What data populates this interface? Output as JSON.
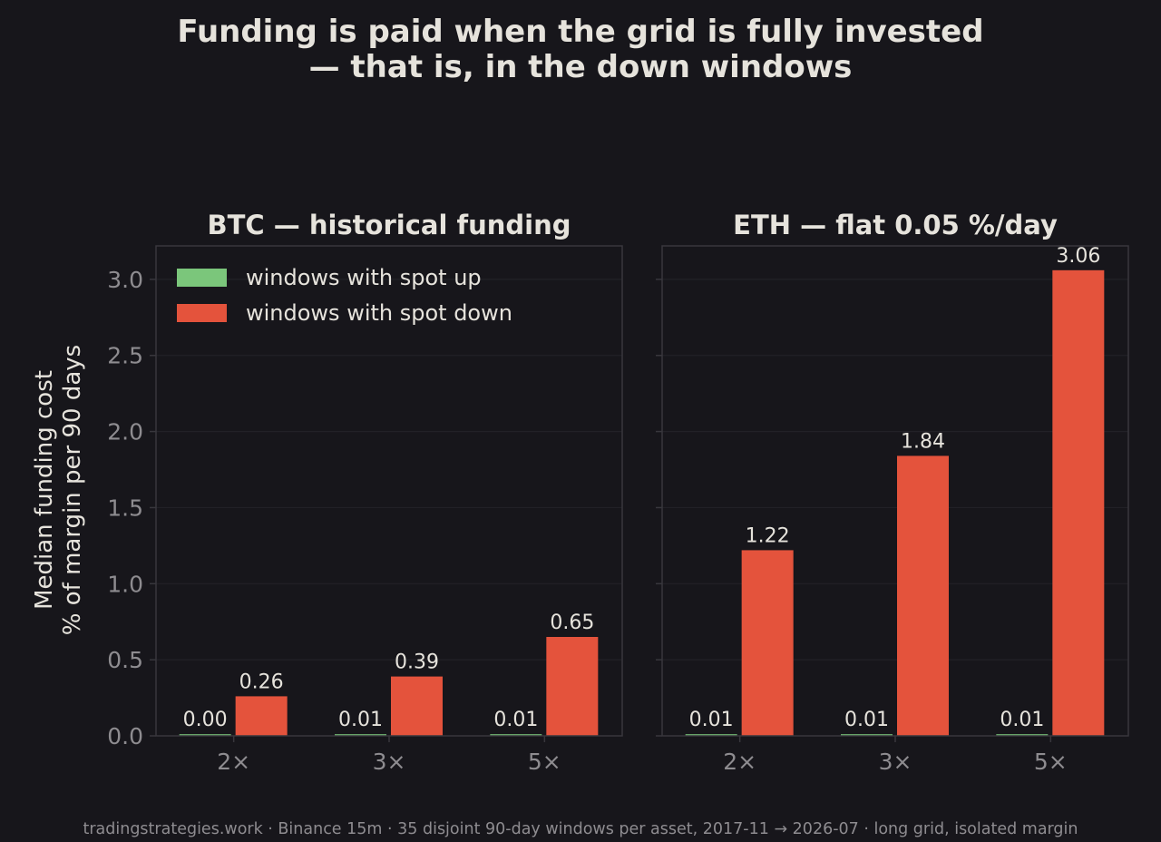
{
  "title_line1": "Funding is paid when the grid is fully invested",
  "title_line2": "— that is, in the down windows",
  "footer": "tradingstrategies.work · Binance 15m · 35 disjoint 90-day windows per asset, 2017-11 → 2026-07 · long grid, isolated margin",
  "ylabel_line1": "Median funding cost",
  "ylabel_line2": "% of margin per 90 days",
  "colors": {
    "background": "#17161b",
    "up": "#7bc67b",
    "down": "#e4533c",
    "text": "#e6e3dc",
    "muted": "#8e8c90",
    "spine": "#38373d",
    "grid": "#222127"
  },
  "chart_data": [
    {
      "type": "bar",
      "title": "BTC — historical funding",
      "categories": [
        "2×",
        "3×",
        "5×"
      ],
      "series": [
        {
          "name": "windows with spot up",
          "values": [
            0.0,
            0.01,
            0.01
          ],
          "labels": [
            "0.00",
            "0.01",
            "0.01"
          ]
        },
        {
          "name": "windows with spot down",
          "values": [
            0.26,
            0.39,
            0.65
          ],
          "labels": [
            "0.26",
            "0.39",
            "0.65"
          ]
        }
      ],
      "ylim": [
        0,
        3.22
      ],
      "yticks": [
        "0.0",
        "0.5",
        "1.0",
        "1.5",
        "2.0",
        "2.5",
        "3.0"
      ],
      "legend": "top-left",
      "grid": "horizontal"
    },
    {
      "type": "bar",
      "title": "ETH — flat 0.05 %/day",
      "categories": [
        "2×",
        "3×",
        "5×"
      ],
      "series": [
        {
          "name": "windows with spot up",
          "values": [
            0.01,
            0.01,
            0.01
          ],
          "labels": [
            "0.01",
            "0.01",
            "0.01"
          ]
        },
        {
          "name": "windows with spot down",
          "values": [
            1.22,
            1.84,
            3.06
          ],
          "labels": [
            "1.22",
            "1.84",
            "3.06"
          ]
        }
      ],
      "ylim": [
        0,
        3.22
      ],
      "yticks": [
        "0.0",
        "0.5",
        "1.0",
        "1.5",
        "2.0",
        "2.5",
        "3.0"
      ],
      "legend": "none",
      "grid": "horizontal"
    }
  ]
}
